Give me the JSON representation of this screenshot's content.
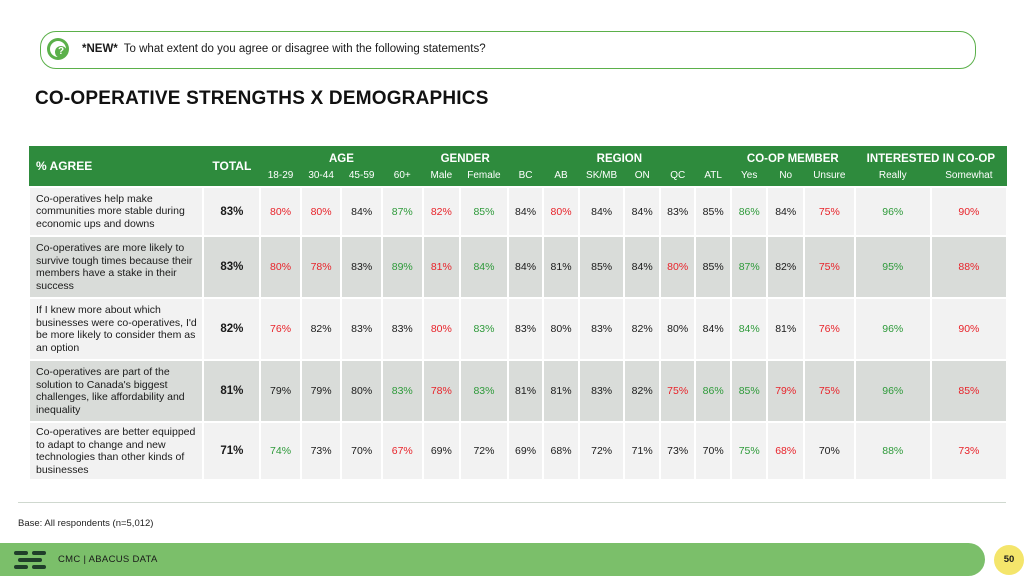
{
  "question": {
    "tag": "*NEW*",
    "text": "To what extent do you agree or disagree with the following statements?"
  },
  "title": "CO-OPERATIVE STRENGTHS X DEMOGRAPHICS",
  "table": {
    "agree_label": "% AGREE",
    "total_label": "TOTAL",
    "groups": [
      "AGE",
      "GENDER",
      "REGION",
      "CO-OP MEMBER",
      "INTERESTED IN CO-OP"
    ],
    "subheaders": [
      "18-29",
      "30-44",
      "45-59",
      "60+",
      "Male",
      "Female",
      "BC",
      "AB",
      "SK/MB",
      "ON",
      "QC",
      "ATL",
      "Yes",
      "No",
      "Unsure",
      "Really",
      "Somewhat"
    ],
    "rows": [
      {
        "statement": "Co-operatives help make communities more stable during economic ups and downs",
        "total": "83%",
        "cells": [
          {
            "v": "80%",
            "c": "red"
          },
          {
            "v": "80%",
            "c": "red"
          },
          {
            "v": "84%",
            "c": "black"
          },
          {
            "v": "87%",
            "c": "green"
          },
          {
            "v": "82%",
            "c": "red"
          },
          {
            "v": "85%",
            "c": "green"
          },
          {
            "v": "84%",
            "c": "black"
          },
          {
            "v": "80%",
            "c": "red"
          },
          {
            "v": "84%",
            "c": "black"
          },
          {
            "v": "84%",
            "c": "black"
          },
          {
            "v": "83%",
            "c": "black"
          },
          {
            "v": "85%",
            "c": "black"
          },
          {
            "v": "86%",
            "c": "green"
          },
          {
            "v": "84%",
            "c": "black"
          },
          {
            "v": "75%",
            "c": "red"
          },
          {
            "v": "96%",
            "c": "green"
          },
          {
            "v": "90%",
            "c": "red"
          }
        ]
      },
      {
        "statement": "Co-operatives are more likely to survive tough times because their members have a stake in their success",
        "total": "83%",
        "cells": [
          {
            "v": "80%",
            "c": "red"
          },
          {
            "v": "78%",
            "c": "red"
          },
          {
            "v": "83%",
            "c": "black"
          },
          {
            "v": "89%",
            "c": "green"
          },
          {
            "v": "81%",
            "c": "red"
          },
          {
            "v": "84%",
            "c": "green"
          },
          {
            "v": "84%",
            "c": "black"
          },
          {
            "v": "81%",
            "c": "black"
          },
          {
            "v": "85%",
            "c": "black"
          },
          {
            "v": "84%",
            "c": "black"
          },
          {
            "v": "80%",
            "c": "red"
          },
          {
            "v": "85%",
            "c": "black"
          },
          {
            "v": "87%",
            "c": "green"
          },
          {
            "v": "82%",
            "c": "black"
          },
          {
            "v": "75%",
            "c": "red"
          },
          {
            "v": "95%",
            "c": "green"
          },
          {
            "v": "88%",
            "c": "red"
          }
        ]
      },
      {
        "statement": "If I knew more about which businesses were co-operatives, I'd be more likely to consider them as an option",
        "total": "82%",
        "cells": [
          {
            "v": "76%",
            "c": "red"
          },
          {
            "v": "82%",
            "c": "black"
          },
          {
            "v": "83%",
            "c": "black"
          },
          {
            "v": "83%",
            "c": "black"
          },
          {
            "v": "80%",
            "c": "red"
          },
          {
            "v": "83%",
            "c": "green"
          },
          {
            "v": "83%",
            "c": "black"
          },
          {
            "v": "80%",
            "c": "black"
          },
          {
            "v": "83%",
            "c": "black"
          },
          {
            "v": "82%",
            "c": "black"
          },
          {
            "v": "80%",
            "c": "black"
          },
          {
            "v": "84%",
            "c": "black"
          },
          {
            "v": "84%",
            "c": "green"
          },
          {
            "v": "81%",
            "c": "black"
          },
          {
            "v": "76%",
            "c": "red"
          },
          {
            "v": "96%",
            "c": "green"
          },
          {
            "v": "90%",
            "c": "red"
          }
        ]
      },
      {
        "statement": "Co-operatives are part of the solution to Canada's biggest challenges, like affordability and inequality",
        "total": "81%",
        "cells": [
          {
            "v": "79%",
            "c": "black"
          },
          {
            "v": "79%",
            "c": "black"
          },
          {
            "v": "80%",
            "c": "black"
          },
          {
            "v": "83%",
            "c": "green"
          },
          {
            "v": "78%",
            "c": "red"
          },
          {
            "v": "83%",
            "c": "green"
          },
          {
            "v": "81%",
            "c": "black"
          },
          {
            "v": "81%",
            "c": "black"
          },
          {
            "v": "83%",
            "c": "black"
          },
          {
            "v": "82%",
            "c": "black"
          },
          {
            "v": "75%",
            "c": "red"
          },
          {
            "v": "86%",
            "c": "green"
          },
          {
            "v": "85%",
            "c": "green"
          },
          {
            "v": "79%",
            "c": "red"
          },
          {
            "v": "75%",
            "c": "red"
          },
          {
            "v": "96%",
            "c": "green"
          },
          {
            "v": "85%",
            "c": "red"
          }
        ]
      },
      {
        "statement": "Co-operatives are better equipped to adapt to change and new technologies than other kinds of businesses",
        "total": "71%",
        "cells": [
          {
            "v": "74%",
            "c": "green"
          },
          {
            "v": "73%",
            "c": "black"
          },
          {
            "v": "70%",
            "c": "black"
          },
          {
            "v": "67%",
            "c": "red"
          },
          {
            "v": "69%",
            "c": "black"
          },
          {
            "v": "72%",
            "c": "black"
          },
          {
            "v": "69%",
            "c": "black"
          },
          {
            "v": "68%",
            "c": "black"
          },
          {
            "v": "72%",
            "c": "black"
          },
          {
            "v": "71%",
            "c": "black"
          },
          {
            "v": "73%",
            "c": "black"
          },
          {
            "v": "70%",
            "c": "black"
          },
          {
            "v": "75%",
            "c": "green"
          },
          {
            "v": "68%",
            "c": "red"
          },
          {
            "v": "70%",
            "c": "black"
          },
          {
            "v": "88%",
            "c": "green"
          },
          {
            "v": "73%",
            "c": "red"
          }
        ]
      }
    ]
  },
  "base_note": "Base: All respondents (n=5,012)",
  "footer": {
    "text": "CMC | ABACUS DATA",
    "page": "50"
  },
  "colors": {
    "accent": "#2e8b3d",
    "red": "#e8232a",
    "green": "#2e9a3a",
    "footer": "#7bbf6a",
    "page_badge": "#f4e56b"
  }
}
